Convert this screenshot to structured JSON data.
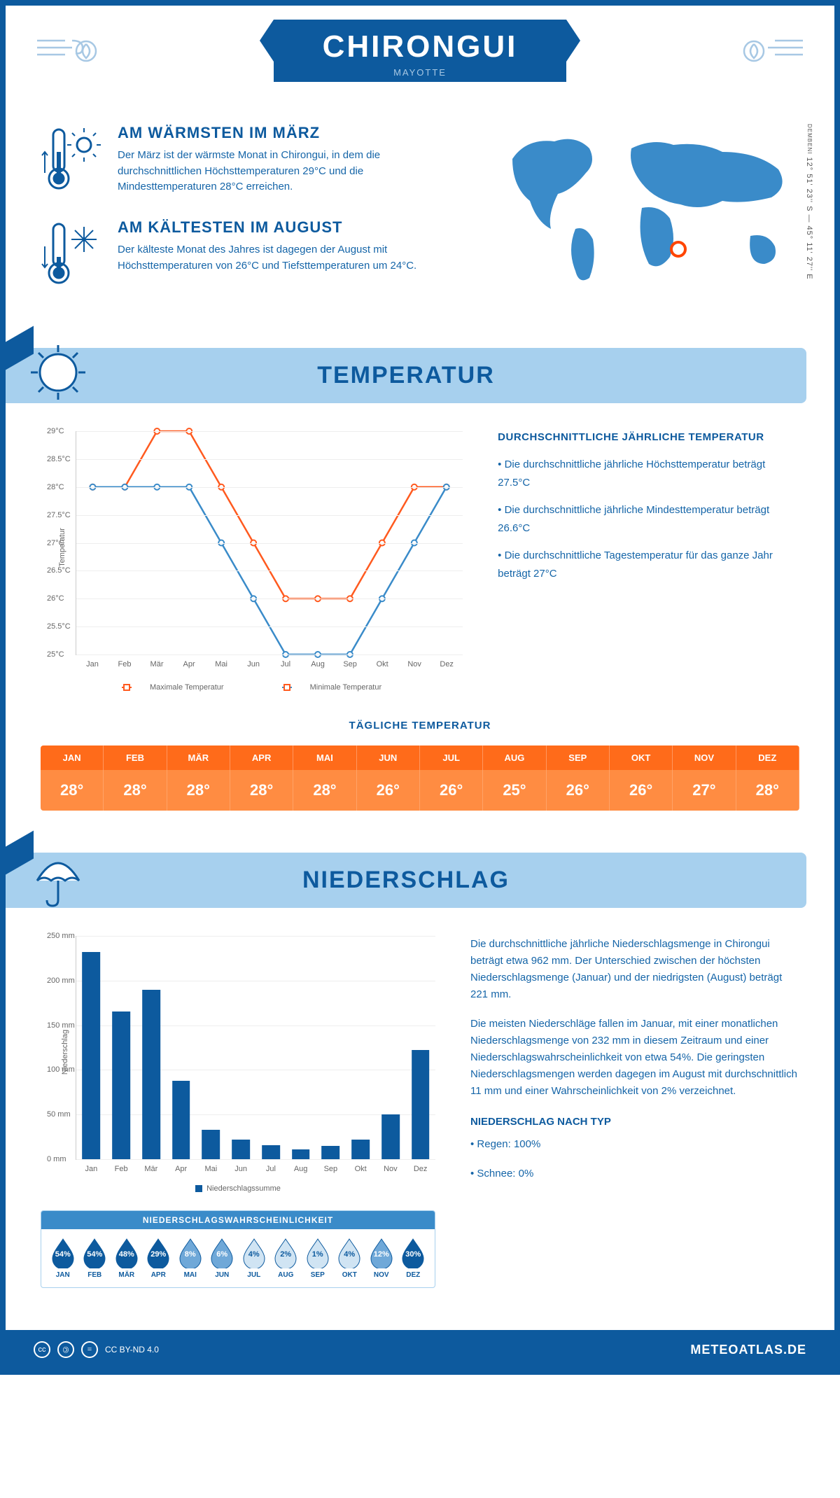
{
  "header": {
    "title": "CHIRONGUI",
    "subtitle": "MAYOTTE"
  },
  "coords": {
    "text": "12° 51' 23'' S — 45° 11' 27'' E",
    "region": "DEMBENI"
  },
  "map": {
    "marker_left_pct": 58,
    "marker_top_pct": 62
  },
  "warmest": {
    "heading": "AM WÄRMSTEN IM MÄRZ",
    "text": "Der März ist der wärmste Monat in Chirongui, in dem die durchschnittlichen Höchsttemperaturen 29°C und die Mindesttemperaturen 28°C erreichen."
  },
  "coldest": {
    "heading": "AM KÄLTESTEN IM AUGUST",
    "text": "Der kälteste Monat des Jahres ist dagegen der August mit Höchsttemperaturen von 26°C und Tiefsttemperaturen um 24°C."
  },
  "temp_section": {
    "title": "TEMPERATUR"
  },
  "temp_chart": {
    "type": "line",
    "months": [
      "Jan",
      "Feb",
      "Mär",
      "Apr",
      "Mai",
      "Jun",
      "Jul",
      "Aug",
      "Sep",
      "Okt",
      "Nov",
      "Dez"
    ],
    "max_series": {
      "label": "Maximale Temperatur",
      "color": "#ff5a1f",
      "values": [
        28,
        28,
        29,
        29,
        28,
        27,
        26,
        26,
        26,
        27,
        28,
        28
      ]
    },
    "min_series": {
      "label": "Minimale Temperatur",
      "color": "#3a8bc9",
      "values": [
        28,
        28,
        28,
        28,
        27,
        26,
        25,
        25,
        25,
        26,
        27,
        28
      ]
    },
    "ylim": [
      25,
      29
    ],
    "ytick_step": 0.5,
    "ylabel": "Temperatur",
    "grid_color": "#eeeeee"
  },
  "temp_info": {
    "heading": "DURCHSCHNITTLICHE JÄHRLICHE TEMPERATUR",
    "bullets": [
      "• Die durchschnittliche jährliche Höchsttemperatur beträgt 27.5°C",
      "• Die durchschnittliche jährliche Mindesttemperatur beträgt 26.6°C",
      "• Die durchschnittliche Tagestemperatur für das ganze Jahr beträgt 27°C"
    ]
  },
  "daily_temp": {
    "heading": "TÄGLICHE TEMPERATUR",
    "months": [
      "JAN",
      "FEB",
      "MÄR",
      "APR",
      "MAI",
      "JUN",
      "JUL",
      "AUG",
      "SEP",
      "OKT",
      "NOV",
      "DEZ"
    ],
    "values": [
      "28°",
      "28°",
      "28°",
      "28°",
      "28°",
      "26°",
      "26°",
      "25°",
      "26°",
      "26°",
      "27°",
      "28°"
    ],
    "header_bg": "#ff6b1a",
    "value_bg": "#ff8c42"
  },
  "precip_section": {
    "title": "NIEDERSCHLAG"
  },
  "precip_chart": {
    "type": "bar",
    "months": [
      "Jan",
      "Feb",
      "Mär",
      "Apr",
      "Mai",
      "Jun",
      "Jul",
      "Aug",
      "Sep",
      "Okt",
      "Nov",
      "Dez"
    ],
    "values": [
      232,
      165,
      190,
      88,
      33,
      22,
      16,
      11,
      15,
      22,
      50,
      122
    ],
    "ylim": [
      0,
      250
    ],
    "ytick_step": 50,
    "ylabel": "Niederschlag",
    "bar_color": "#0d5a9e",
    "legend": "Niederschlagssumme"
  },
  "precip_text": {
    "p1": "Die durchschnittliche jährliche Niederschlagsmenge in Chirongui beträgt etwa 962 mm. Der Unterschied zwischen der höchsten Niederschlagsmenge (Januar) und der niedrigsten (August) beträgt 221 mm.",
    "p2": "Die meisten Niederschläge fallen im Januar, mit einer monatlichen Niederschlagsmenge von 232 mm in diesem Zeitraum und einer Niederschlagswahrscheinlichkeit von etwa 54%. Die geringsten Niederschlagsmengen werden dagegen im August mit durchschnittlich 11 mm und einer Wahrscheinlichkeit von 2% verzeichnet.",
    "type_heading": "NIEDERSCHLAG NACH TYP",
    "type_bullets": [
      "• Regen: 100%",
      "• Schnee: 0%"
    ]
  },
  "precip_prob": {
    "heading": "NIEDERSCHLAGSWAHRSCHEINLICHKEIT",
    "months": [
      "JAN",
      "FEB",
      "MÄR",
      "APR",
      "MAI",
      "JUN",
      "JUL",
      "AUG",
      "SEP",
      "OKT",
      "NOV",
      "DEZ"
    ],
    "values": [
      54,
      54,
      48,
      29,
      8,
      6,
      4,
      2,
      1,
      4,
      12,
      30
    ],
    "fill_dark": "#0d5a9e",
    "fill_mid": "#6fa8d8",
    "fill_light": "#d0e4f3"
  },
  "footer": {
    "license": "CC BY-ND 4.0",
    "brand": "METEOATLAS.DE"
  }
}
